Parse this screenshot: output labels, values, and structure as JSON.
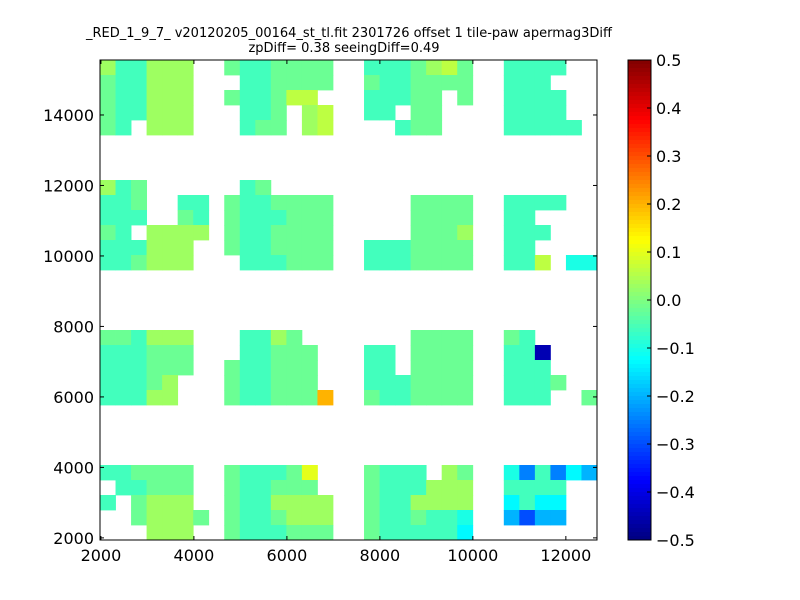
{
  "chart_data": {
    "type": "heatmap",
    "title_line1": "_RED_1_9_7_ v20120205_00164_st_tl.fit 2301726 offset 1 tile-paw apermag3Diff",
    "title_line2": "zpDiff= 0.38 seeingDiff=0.49",
    "xlim": [
      1980,
      12670
    ],
    "ylim": [
      1940,
      15560
    ],
    "x_ticks": [
      2000,
      4000,
      6000,
      8000,
      10000,
      12000
    ],
    "x_tick_labels": [
      "2000",
      "4000",
      "6000",
      "8000",
      "10000",
      "12000"
    ],
    "y_ticks": [
      2000,
      4000,
      6000,
      8000,
      10000,
      12000,
      14000
    ],
    "y_tick_labels": [
      "2000",
      "4000",
      "6000",
      "8000",
      "10000",
      "12000",
      "14000"
    ],
    "colormap": "jet",
    "color_range": [
      -0.5,
      0.5
    ],
    "colorbar_ticks": [
      0.5,
      0.4,
      0.3,
      0.2,
      0.1,
      0.0,
      -0.1,
      -0.2,
      -0.3,
      -0.4,
      -0.5
    ],
    "colorbar_tick_labels": [
      "0.5",
      "0.4",
      "0.3",
      "0.2",
      "0.1",
      "0.0",
      "−0.1",
      "−0.2",
      "−0.3",
      "−0.4",
      "−0.5"
    ],
    "grid_columns": 32,
    "grid_rows": 32,
    "row_order": "top-to-bottom",
    "cell_codes": {
      ".": null,
      "C": -0.06,
      "G": -0.02,
      "Y": 0.03,
      "L": 0.06,
      "U": 0.1,
      "O": 0.2,
      "B": -0.45,
      "b": -0.3,
      "a": -0.25,
      "s": -0.2,
      "t": -0.13,
      "k": -0.1
    },
    "grid": [
      "YCCYYY..GCCGGGG..CCCGYLG..CCCC..",
      "GCCYYY...CCGGGG..GCCGGGG..CCC...",
      "GCCYYY..GCCGLL...CCCGG.G..CCCC..",
      "GCCYYY...CCG.YL..CC.GG....CCCC..",
      "GC.YYY...CGG.YL....CGG....CCCCC.",
      "................................",
      "................................",
      "................................",
      "YCG......CG.....................",
      "CCG..CC.GCCGGGG.....GGGG..CCCC..",
      "CCC..GC.GCCCGGG.....GGGG..CC....",
      "GC.YYYY.GCCGGGG.....GGGY..CCC...",
      "CCCYYY..GCCGGGG..CCCGGGG..CC....",
      "CCGYYY...CCCGGG..CCCGGGG..CCL.kk",
      "................................",
      "................................",
      "................................",
      "................................",
      "GGCYYY...CCYG.......GGGG..GC....",
      "CCCGGG...CCGGG...CC.GGGG..CCB...",
      "CCCGGG..GCCGGG...CC.GGGG..CCC...",
      "CCCGY...GCCGGG...CCCGGGG..CCCG..",
      "CCCYY...GCCGGGO..GCCGGGG..CCC..G",
      "................................",
      "................................",
      "................................",
      "................................",
      "CCGGGG..GCCCGU...GCCC.YG..kaCats",
      ".CCGGG..GCCGGG...GCCCYYY..CCCC..",
      "C.GYYY..GCCYYYY..GCCYYYY..tCtt..",
      "..GYYYG.GCCGYYY..GCCGCCk..sbss..",
      "...YYY..GCCCGGG..GCCCCCt........"
    ]
  }
}
